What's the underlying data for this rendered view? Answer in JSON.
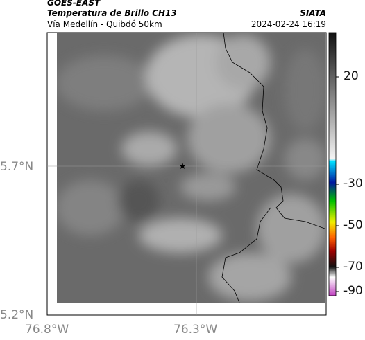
{
  "header": {
    "source": "GOES-EAST",
    "title": "Temperatura de Brillo CH13",
    "agency": "SIATA",
    "route": "Vía Medellín - Quibdó 50km",
    "timestamp": "2024-02-24 16:19"
  },
  "map": {
    "lat_labels": [
      "5.7°N",
      "5.2°N"
    ],
    "lon_labels": [
      "76.8°W",
      "76.3°W"
    ]
  },
  "colorbar": {
    "ticks": [
      "20",
      "-30",
      "-50",
      "-70",
      "-90"
    ]
  }
}
